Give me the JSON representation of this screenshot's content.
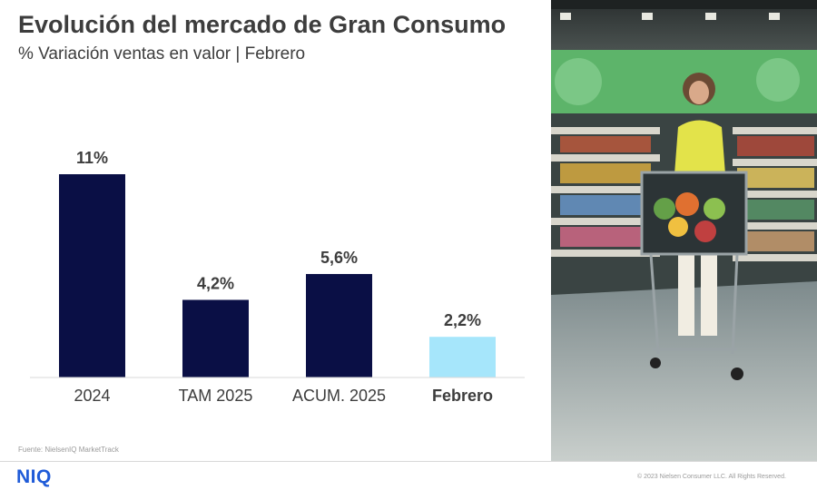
{
  "header": {
    "title": "Evolución del mercado de Gran Consumo",
    "subtitle": "% Variación ventas en valor | Febrero"
  },
  "chart_data": {
    "type": "bar",
    "title": "",
    "xlabel": "",
    "ylabel": "",
    "categories": [
      "2024",
      "TAM 2025",
      "ACUM. 2025",
      "Febrero"
    ],
    "values": [
      11,
      4.2,
      5.6,
      2.2
    ],
    "data_labels": [
      "11%",
      "4,2%",
      "5,6%",
      "2,2%"
    ],
    "highlight_index": 3,
    "ylim": [
      0,
      11
    ],
    "grid": false,
    "colors": {
      "default": "#0a0f45",
      "highlight": "#a6e6fb",
      "baseline": "#d9d9d9"
    }
  },
  "photo": {
    "subject": "woman pushing shopping cart in supermarket aisle"
  },
  "footer": {
    "source": "Fuente: NielsenIQ MarketTrack",
    "logo": "NIQ",
    "copyright": "© 2023 Nielsen Consumer LLC. All Rights Reserved."
  }
}
